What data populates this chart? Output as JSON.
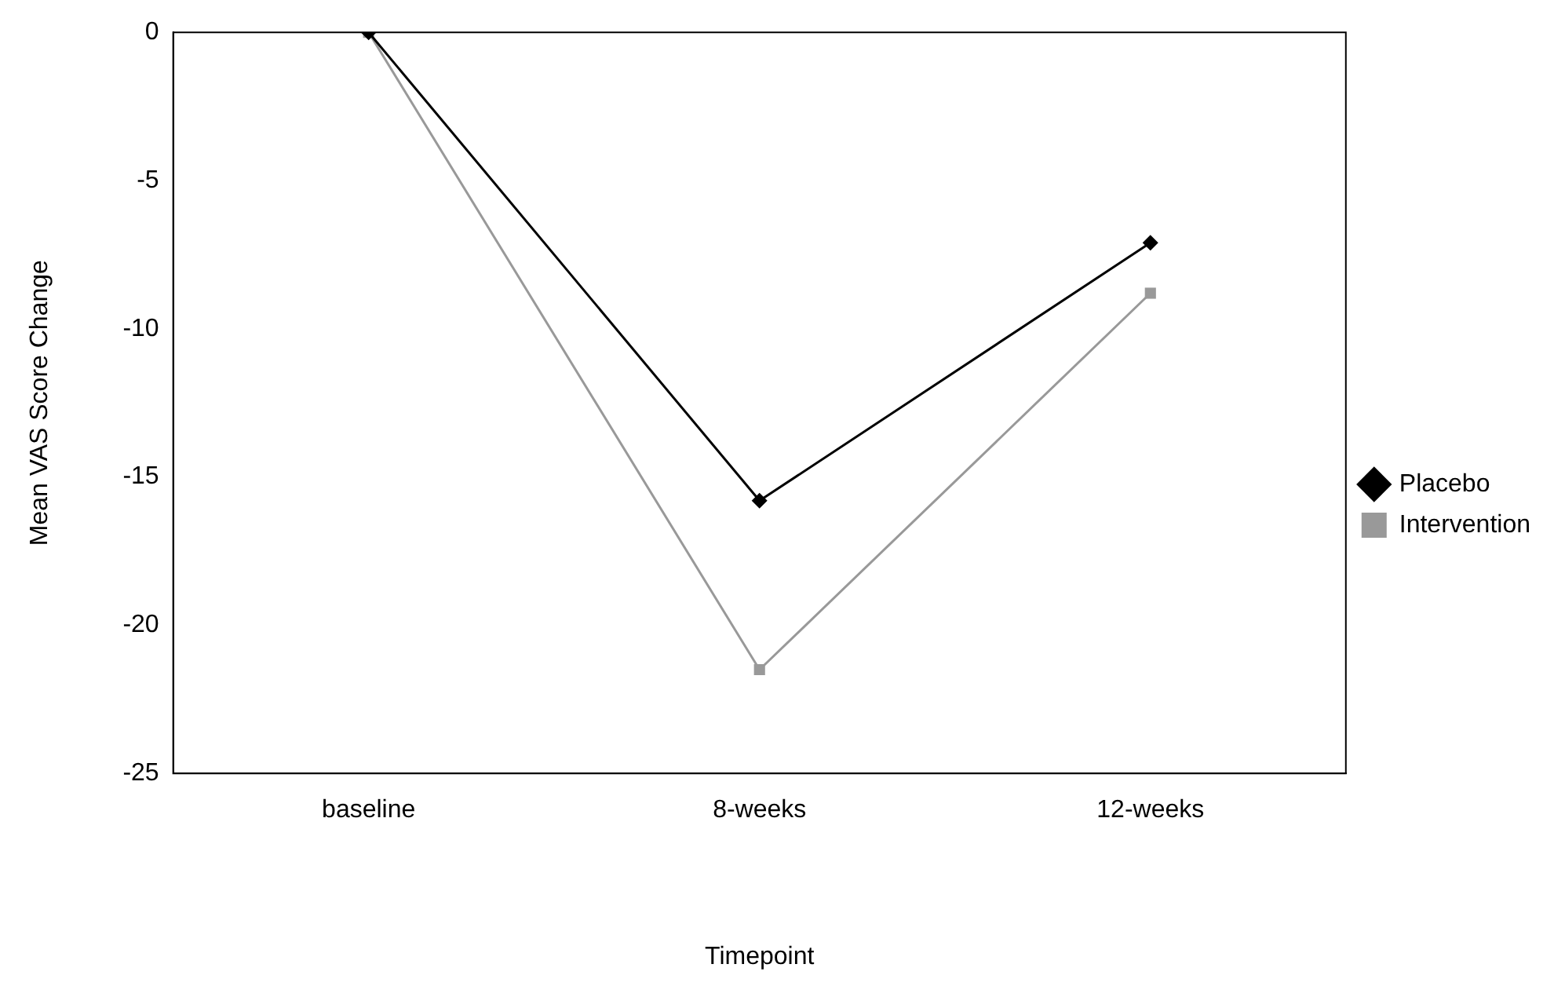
{
  "chart_data": {
    "type": "line",
    "xlabel": "Timepoint",
    "ylabel": "Mean VAS Score Change",
    "categories": [
      "baseline",
      "8-weeks",
      "12-weeks"
    ],
    "series": [
      {
        "name": "Placebo",
        "color": "#000000",
        "marker": "diamond",
        "values": [
          0,
          -15.8,
          -7.1
        ]
      },
      {
        "name": "Intervention",
        "color": "#999999",
        "marker": "square",
        "values": [
          0,
          -21.5,
          -8.8
        ]
      }
    ],
    "ylim": [
      -25,
      0
    ],
    "yticks": [
      0,
      -5,
      -10,
      -15,
      -20,
      -25
    ],
    "grid": false,
    "legend": "right",
    "line_style": "solid"
  }
}
